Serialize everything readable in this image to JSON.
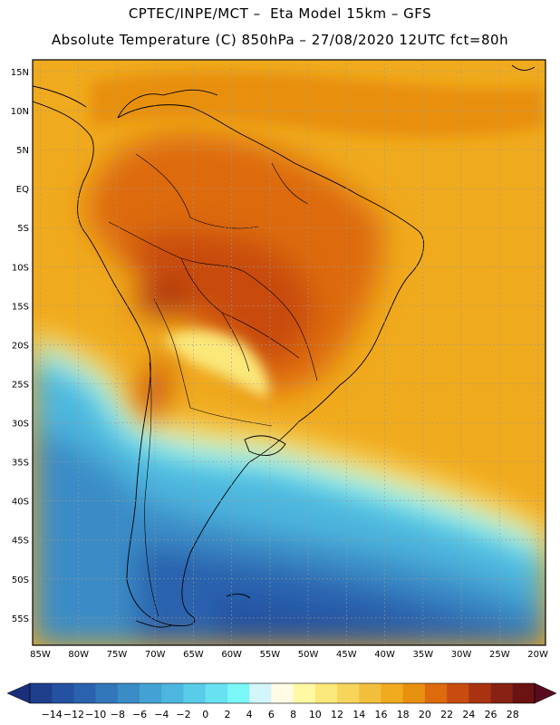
{
  "header": {
    "line1": "CPTEC/INPE/MCT –  Eta Model 15km – GFS",
    "line2": "Absolute Temperature (C) 850hPa – 27/08/2020 12UTC fct=80h"
  },
  "map": {
    "lat_ticks": [
      "15N",
      "10N",
      "5N",
      "EQ",
      "5S",
      "10S",
      "15S",
      "20S",
      "25S",
      "30S",
      "35S",
      "40S",
      "45S",
      "50S",
      "55S"
    ],
    "lon_ticks": [
      "85W",
      "80W",
      "75W",
      "70W",
      "65W",
      "60W",
      "55W",
      "50W",
      "45W",
      "40W",
      "35W",
      "30W",
      "25W",
      "20W"
    ],
    "lon_range": [
      -86,
      -19
    ],
    "lat_range": [
      -58.5,
      16.5
    ]
  },
  "legend": {
    "labels": [
      "-14",
      "-12",
      "-10",
      "-8",
      "-6",
      "-4",
      "-2",
      "0",
      "2",
      "4",
      "6",
      "8",
      "10",
      "12",
      "14",
      "16",
      "18",
      "20",
      "22",
      "24",
      "26",
      "28"
    ],
    "colors": [
      "#1d3f8c",
      "#2451a0",
      "#2b62ae",
      "#3277ba",
      "#3a8cc6",
      "#43a2d3",
      "#4db6de",
      "#58cce8",
      "#66e2f1",
      "#7af7f7",
      "#d3f6fb",
      "#fffbe4",
      "#fff9a4",
      "#fbe87a",
      "#f7d55a",
      "#f2bf3d",
      "#f0aa1d",
      "#e8900f",
      "#dd6a0c",
      "#c84c0f",
      "#a93310",
      "#872214",
      "#6b1212"
    ],
    "extend_low_color": "#1a2f7a",
    "extend_high_color": "#5a0a20"
  }
}
